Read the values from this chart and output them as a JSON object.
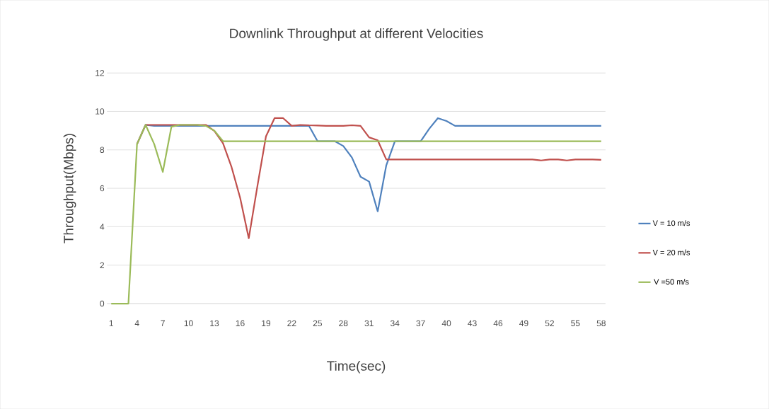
{
  "chart_data": {
    "type": "line",
    "title": "Downlink Throughput at different Velocities",
    "xlabel": "Time(sec)",
    "ylabel": "Throughput(Mbps)",
    "categories": [
      "1",
      null,
      null,
      "4",
      null,
      null,
      "7",
      null,
      null,
      "10",
      null,
      null,
      "13",
      null,
      null,
      "16",
      null,
      null,
      "19",
      null,
      null,
      "22",
      null,
      null,
      "25",
      null,
      null,
      "28",
      null,
      null,
      "31",
      null,
      null,
      "34",
      null,
      null,
      "37",
      null,
      null,
      "40",
      null,
      null,
      "43",
      null,
      null,
      "46",
      null,
      null,
      "49",
      null,
      null,
      "52",
      null,
      null,
      "55",
      null,
      null,
      "58"
    ],
    "series": [
      {
        "name": "V = 10 m/s",
        "color": "#4f81bd",
        "values": [
          null,
          null,
          null,
          8.3,
          9.3,
          9.25,
          9.25,
          9.25,
          9.25,
          9.25,
          9.25,
          9.25,
          9.25,
          9.25,
          9.25,
          9.25,
          9.25,
          9.25,
          9.25,
          9.25,
          9.25,
          9.25,
          9.25,
          9.25,
          8.45,
          8.45,
          8.45,
          8.2,
          7.6,
          6.6,
          6.35,
          4.8,
          7.2,
          8.45,
          8.45,
          8.45,
          8.45,
          9.1,
          9.65,
          9.5,
          9.25,
          9.25,
          9.25,
          9.25,
          9.25,
          9.25,
          9.25,
          9.25,
          9.25,
          9.25,
          9.25,
          9.25,
          9.25,
          9.25,
          9.25,
          9.25,
          9.25,
          9.25
        ]
      },
      {
        "name": "V = 20 m/s",
        "color": "#c0504d",
        "values": [
          null,
          null,
          null,
          8.3,
          9.3,
          9.3,
          9.3,
          9.3,
          9.3,
          9.3,
          9.3,
          9.3,
          8.98,
          8.35,
          7.1,
          5.5,
          3.4,
          6.1,
          8.7,
          9.65,
          9.65,
          9.25,
          9.3,
          9.28,
          9.27,
          9.25,
          9.25,
          9.25,
          9.28,
          9.25,
          8.65,
          8.5,
          7.5,
          7.5,
          7.5,
          7.5,
          7.5,
          7.5,
          7.5,
          7.5,
          7.5,
          7.5,
          7.5,
          7.5,
          7.5,
          7.5,
          7.5,
          7.5,
          7.5,
          7.5,
          7.45,
          7.5,
          7.5,
          7.45,
          7.5,
          7.5,
          7.5,
          7.48
        ]
      },
      {
        "name": "V =50 m/s",
        "color": "#9bbb59",
        "values": [
          0,
          0,
          0,
          8.3,
          9.3,
          8.3,
          6.85,
          9.2,
          9.3,
          9.3,
          9.3,
          9.25,
          9.0,
          8.45,
          8.45,
          8.45,
          8.45,
          8.45,
          8.45,
          8.45,
          8.45,
          8.45,
          8.45,
          8.45,
          8.45,
          8.45,
          8.45,
          8.45,
          8.45,
          8.45,
          8.45,
          8.45,
          8.45,
          8.45,
          8.45,
          8.45,
          8.45,
          8.45,
          8.45,
          8.45,
          8.45,
          8.45,
          8.45,
          8.45,
          8.45,
          8.45,
          8.45,
          8.45,
          8.45,
          8.45,
          8.45,
          8.45,
          8.45,
          8.45,
          8.45,
          8.45,
          8.45,
          8.45
        ]
      }
    ],
    "ylim": [
      0,
      12
    ],
    "yticks": [
      0,
      2,
      4,
      6,
      8,
      10,
      12
    ],
    "grid": "y",
    "legend": "right",
    "marker": "none",
    "line_style": "solid"
  }
}
